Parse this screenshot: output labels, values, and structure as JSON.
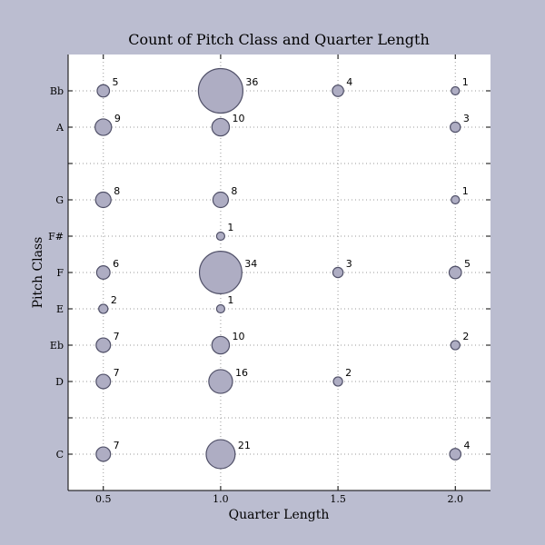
{
  "chart_data": {
    "type": "scatter",
    "title": "Count of Pitch Class and Quarter Length",
    "xlabel": "Quarter Length",
    "ylabel": "Pitch Class",
    "xlim": [
      0.35,
      2.15
    ],
    "ylim": [
      -1,
      11
    ],
    "x_ticks": [
      {
        "value": 0.5,
        "label": "0.5"
      },
      {
        "value": 1.0,
        "label": "1.0"
      },
      {
        "value": 1.5,
        "label": "1.5"
      },
      {
        "value": 2.0,
        "label": "2.0"
      }
    ],
    "y_ticks": [
      {
        "value": 0,
        "label": "C"
      },
      {
        "value": 1,
        "label": ""
      },
      {
        "value": 2,
        "label": "D"
      },
      {
        "value": 3,
        "label": "Eb"
      },
      {
        "value": 4,
        "label": "E"
      },
      {
        "value": 5,
        "label": "F"
      },
      {
        "value": 6,
        "label": "F#"
      },
      {
        "value": 7,
        "label": "G"
      },
      {
        "value": 8,
        "label": ""
      },
      {
        "value": 9,
        "label": "A"
      },
      {
        "value": 10,
        "label": "Bb"
      }
    ],
    "grid": true,
    "marker_color": "#aeadc3",
    "marker_edge_color": "#505068",
    "points": [
      {
        "x": 0.5,
        "y": 10,
        "count": 5
      },
      {
        "x": 1.0,
        "y": 10,
        "count": 36
      },
      {
        "x": 1.5,
        "y": 10,
        "count": 4
      },
      {
        "x": 2.0,
        "y": 10,
        "count": 1
      },
      {
        "x": 0.5,
        "y": 9,
        "count": 9
      },
      {
        "x": 1.0,
        "y": 9,
        "count": 10
      },
      {
        "x": 2.0,
        "y": 9,
        "count": 3
      },
      {
        "x": 0.5,
        "y": 7,
        "count": 8
      },
      {
        "x": 1.0,
        "y": 7,
        "count": 8
      },
      {
        "x": 2.0,
        "y": 7,
        "count": 1
      },
      {
        "x": 1.0,
        "y": 6,
        "count": 1
      },
      {
        "x": 0.5,
        "y": 5,
        "count": 6
      },
      {
        "x": 1.0,
        "y": 5,
        "count": 34
      },
      {
        "x": 1.5,
        "y": 5,
        "count": 3
      },
      {
        "x": 2.0,
        "y": 5,
        "count": 5
      },
      {
        "x": 0.5,
        "y": 4,
        "count": 2
      },
      {
        "x": 1.0,
        "y": 4,
        "count": 1
      },
      {
        "x": 0.5,
        "y": 3,
        "count": 7
      },
      {
        "x": 1.0,
        "y": 3,
        "count": 10
      },
      {
        "x": 2.0,
        "y": 3,
        "count": 2
      },
      {
        "x": 0.5,
        "y": 2,
        "count": 7
      },
      {
        "x": 1.0,
        "y": 2,
        "count": 16
      },
      {
        "x": 1.5,
        "y": 2,
        "count": 2
      },
      {
        "x": 0.5,
        "y": 0,
        "count": 7
      },
      {
        "x": 1.0,
        "y": 0,
        "count": 21
      },
      {
        "x": 2.0,
        "y": 0,
        "count": 4
      }
    ]
  }
}
